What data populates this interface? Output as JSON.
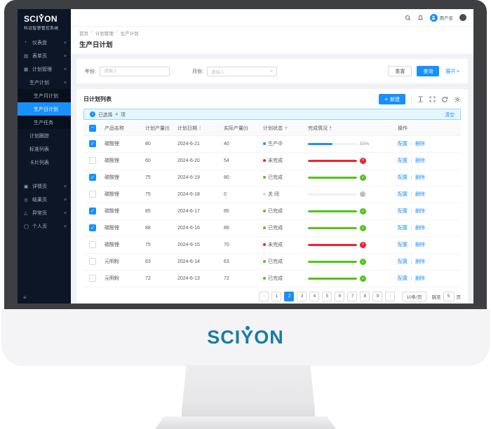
{
  "icons": {
    "check": "✓",
    "close": "×",
    "dash": "−",
    "info": "i",
    "plus": "+",
    "chevron_down": "∨",
    "chevron_up": "∧",
    "caret_up": "▲",
    "caret_down": "▼",
    "prev": "‹",
    "next": "›",
    "slash": "/",
    "hamburger": "≡"
  },
  "brand": {
    "pre": "SCI",
    "y": "Y",
    "post": "ON"
  },
  "sidebar": {
    "logo_subtitle": "科远智慧管控系统",
    "items": [
      {
        "label": "仪表盘",
        "glyph": "◔"
      },
      {
        "label": "表单页",
        "glyph": "▤"
      },
      {
        "label": "计划管理",
        "glyph": "▦"
      },
      {
        "label": "生产计划"
      },
      {
        "label": "生产月计划"
      },
      {
        "label": "生产日计划"
      },
      {
        "label": "生产任务"
      },
      {
        "label": "计划跟踪"
      },
      {
        "label": "标准列表"
      },
      {
        "label": "卡片列表"
      },
      {
        "label": "详情页",
        "glyph": "▣"
      },
      {
        "label": "结果页",
        "glyph": "◎"
      },
      {
        "label": "异常页",
        "glyph": "△"
      },
      {
        "label": "个人页",
        "glyph": "◯"
      }
    ]
  },
  "header": {
    "username": "用户名"
  },
  "breadcrumb": {
    "items": [
      "首页",
      "计划管理",
      "生产计划"
    ]
  },
  "page": {
    "title": "生产日计划"
  },
  "filters": {
    "year_label": "年份:",
    "month_label": "月份:",
    "input_placeholder": "请输入",
    "select_placeholder": "请输入",
    "reset": "重置",
    "search": "查询",
    "expand": "展开"
  },
  "table_card": {
    "title": "日计划列表",
    "new_button": "新建",
    "alert": {
      "selected_prefix": "已选择",
      "selected_count": "4",
      "selected_suffix": "项",
      "clear": "清空"
    },
    "columns": [
      "产品名称",
      "计划产量(t)",
      "计划日期",
      "实际产量(t)",
      "计划状态",
      "完成情况",
      "操作"
    ],
    "actions": {
      "configure": "配置",
      "delete": "删除"
    },
    "rows": [
      {
        "checked": true,
        "product": "碳酸锂",
        "planned": "80",
        "date": "2024-6-21",
        "actual": "40",
        "status": "生产中",
        "status_type": "processing",
        "progress_percent": 50,
        "progress_label": "50%"
      },
      {
        "checked": false,
        "product": "碳酸锂",
        "planned": "60",
        "date": "2024-6-20",
        "actual": "54",
        "status": "未完成",
        "status_type": "error",
        "progress_percent": 100
      },
      {
        "checked": true,
        "product": "碳酸锂",
        "planned": "75",
        "date": "2024-6-19",
        "actual": "80",
        "status": "已完成",
        "status_type": "success",
        "progress_percent": 100
      },
      {
        "checked": false,
        "product": "碳酸锂",
        "planned": "75",
        "date": "2024-6-18",
        "actual": "0",
        "status": "关 闭",
        "status_type": "closed",
        "progress_percent": 0
      },
      {
        "checked": true,
        "product": "碳酸锂",
        "planned": "85",
        "date": "2024-6-17",
        "actual": "85",
        "status": "已完成",
        "status_type": "success",
        "progress_percent": 100
      },
      {
        "checked": true,
        "product": "碳酸锂",
        "planned": "88",
        "date": "2024-6-16",
        "actual": "88",
        "status": "已完成",
        "status_type": "success",
        "progress_percent": 100
      },
      {
        "checked": false,
        "product": "碳酸锂",
        "planned": "75",
        "date": "2024-6-15",
        "actual": "70",
        "status": "未完成",
        "status_type": "error",
        "progress_percent": 100
      },
      {
        "checked": false,
        "product": "元明粉",
        "planned": "63",
        "date": "2024-6-14",
        "actual": "63",
        "status": "已完成",
        "status_type": "success",
        "progress_percent": 100
      },
      {
        "checked": false,
        "product": "元明粉",
        "planned": "72",
        "date": "2024-6-13",
        "actual": "72",
        "status": "已完成",
        "status_type": "success",
        "progress_percent": 100
      }
    ]
  },
  "pagination": {
    "pages": [
      "1",
      "2",
      "3",
      "4",
      "5",
      "6",
      "7",
      "8",
      "9"
    ],
    "active_page": "2",
    "page_size": "10条/页",
    "jump_prefix": "跳至",
    "jump_value": "5",
    "jump_suffix": "页"
  }
}
